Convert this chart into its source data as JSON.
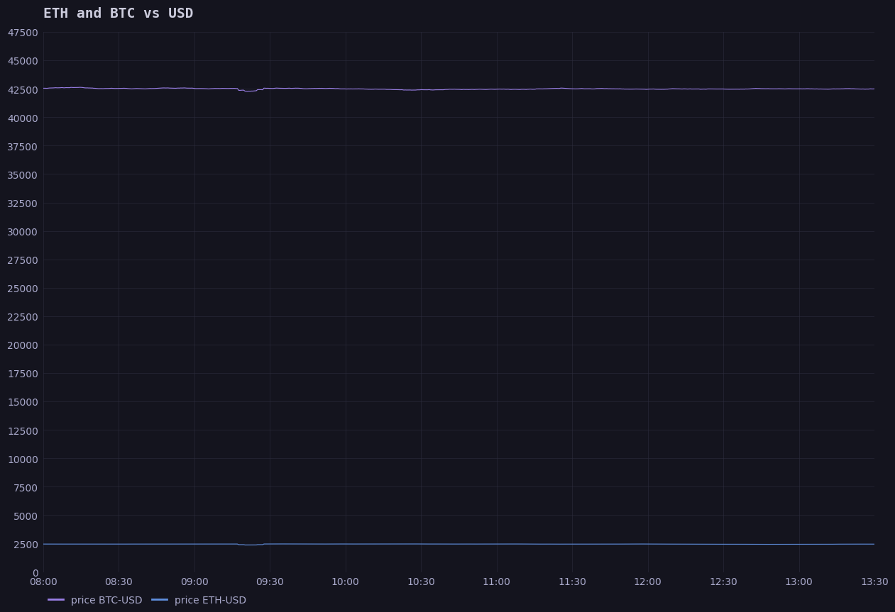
{
  "title": "ETH and BTC vs USD",
  "background_color": "#14141e",
  "plot_bg_color": "#14141e",
  "grid_color": "#2c2c3e",
  "text_color": "#aaaacc",
  "title_color": "#ccccdd",
  "ylim": [
    0,
    47500
  ],
  "yticks": [
    0,
    2500,
    5000,
    7500,
    10000,
    12500,
    15000,
    17500,
    20000,
    22500,
    25000,
    27500,
    30000,
    32500,
    35000,
    37500,
    40000,
    42500,
    45000,
    47500
  ],
  "xtick_labels": [
    "08:00",
    "08:30",
    "09:00",
    "09:30",
    "10:00",
    "10:30",
    "11:00",
    "11:30",
    "12:00",
    "12:30",
    "13:00",
    "13:30"
  ],
  "btc_color": "#9b80e8",
  "eth_color": "#6090e0",
  "btc_label": "price BTC-USD",
  "eth_label": "price ETH-USD",
  "n_points": 660,
  "btc_base": 42500,
  "eth_base": 2460,
  "line_width": 0.8,
  "legend_fontsize": 10,
  "tick_fontsize": 10,
  "title_fontsize": 14
}
